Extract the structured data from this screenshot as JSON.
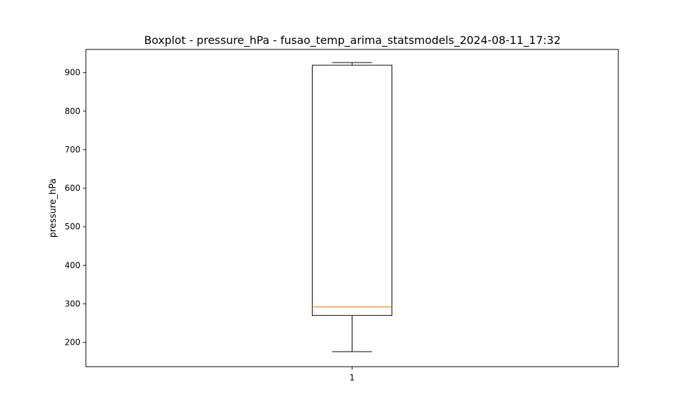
{
  "chart_data": {
    "type": "boxplot",
    "title": "Boxplot - pressure_hPa - fusao_temp_arima_statsmodels_2024-08-11_17:32",
    "xlabel": "",
    "ylabel": "pressure_hPa",
    "categories": [
      "1"
    ],
    "ylim": [
      137,
      960
    ],
    "yticks": [
      200,
      300,
      400,
      500,
      600,
      700,
      800,
      900
    ],
    "ytick_labels": [
      "200",
      "300",
      "400",
      "500",
      "600",
      "700",
      "800",
      "900"
    ],
    "boxes": [
      {
        "category": "1",
        "whisker_low": 176,
        "q1": 270,
        "median": 292,
        "q3": 919,
        "whisker_high": 926
      }
    ],
    "grid": false,
    "colors": {
      "box": "#000000",
      "median": "#ff7f0e",
      "whisker": "#000000"
    }
  }
}
